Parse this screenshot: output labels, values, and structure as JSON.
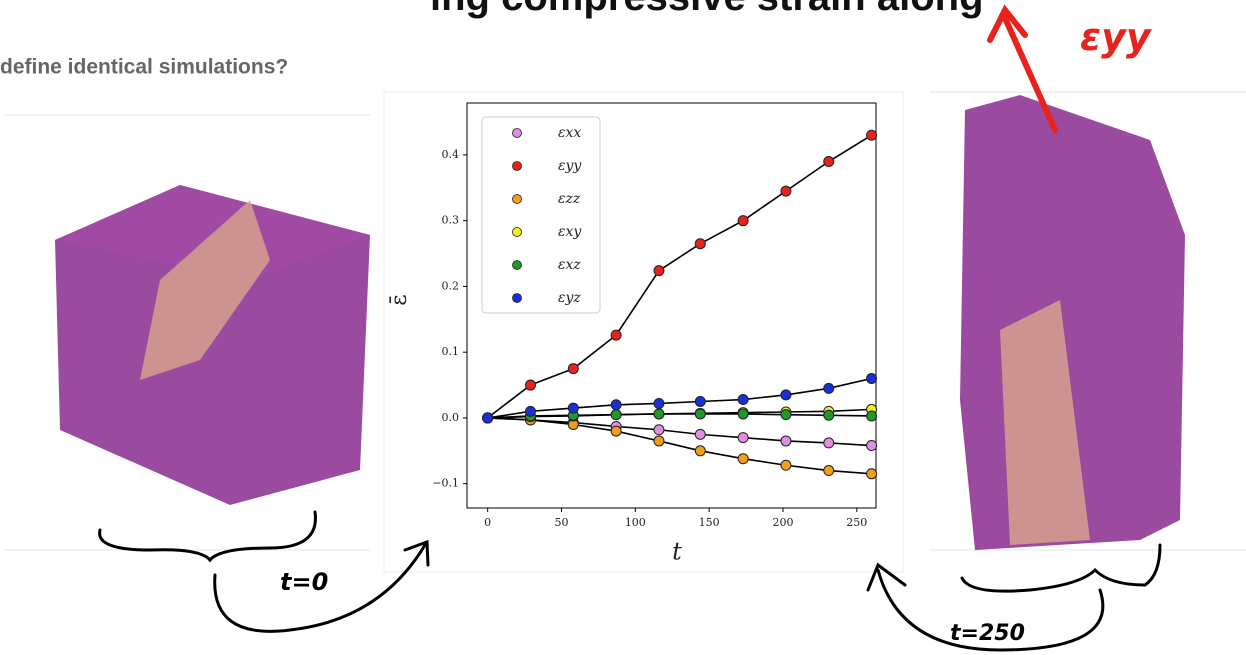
{
  "header": {
    "title": "ing compressive strain along",
    "subtitle": "define identical simulations?"
  },
  "annotations": {
    "strain": "εyy",
    "start": "t=0",
    "end": "t=250"
  },
  "chart_data": {
    "type": "line",
    "x_label": "t",
    "y_label": "ε̄",
    "x": [
      0,
      29,
      58,
      87,
      116,
      144,
      173,
      202,
      231,
      260
    ],
    "series": [
      {
        "name": "εxx",
        "color": "#e08ee0",
        "values": [
          0,
          -0.003,
          -0.007,
          -0.013,
          -0.018,
          -0.025,
          -0.03,
          -0.035,
          -0.038,
          -0.042
        ]
      },
      {
        "name": "εyy",
        "color": "#e8231d",
        "values": [
          0,
          0.05,
          0.075,
          0.126,
          0.224,
          0.265,
          0.3,
          0.345,
          0.39,
          0.43
        ]
      },
      {
        "name": "εzz",
        "color": "#f59c1c",
        "values": [
          0,
          -0.003,
          -0.01,
          -0.02,
          -0.035,
          -0.05,
          -0.062,
          -0.072,
          -0.08,
          -0.085
        ]
      },
      {
        "name": "εxy",
        "color": "#f2ee1e",
        "values": [
          0,
          0.002,
          0.003,
          0.005,
          0.006,
          0.007,
          0.008,
          0.009,
          0.01,
          0.013
        ]
      },
      {
        "name": "εxz",
        "color": "#1f9a2a",
        "values": [
          0,
          0.003,
          0.004,
          0.005,
          0.006,
          0.006,
          0.006,
          0.005,
          0.004,
          0.003
        ]
      },
      {
        "name": "εyz",
        "color": "#1a2fd8",
        "values": [
          0,
          0.01,
          0.015,
          0.02,
          0.022,
          0.025,
          0.028,
          0.035,
          0.045,
          0.06
        ]
      }
    ],
    "fit_color": "#000000",
    "xlim": [
      -14,
      263
    ],
    "ylim": [
      -0.137,
      0.479
    ],
    "xticks": [
      0,
      50,
      100,
      150,
      200,
      250
    ],
    "yticks": [
      {
        "value": -0.1,
        "label": "−0.1"
      },
      {
        "value": 0,
        "label": "0.0"
      },
      0.1,
      0.2,
      0.3,
      0.4
    ],
    "grid": false,
    "legend": "upper left"
  }
}
